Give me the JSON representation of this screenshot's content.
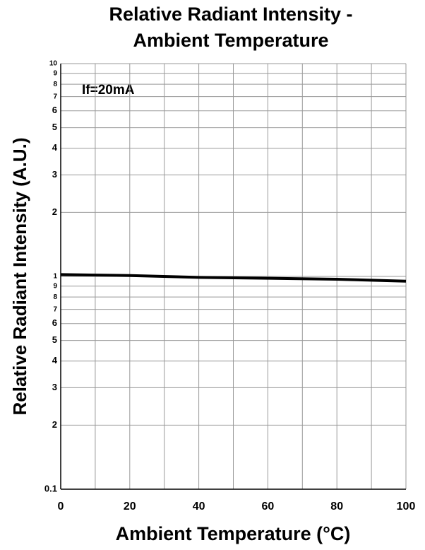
{
  "chart_data": {
    "type": "line",
    "title": [
      "Relative Radiant Intensity -",
      "Ambient Temperature"
    ],
    "x_label": "Ambient Temperature (°C)",
    "y_label": "Relative Radiant Intensity (A.U.)",
    "annotation": "If=20mA",
    "x": [
      0,
      20,
      40,
      60,
      80,
      100
    ],
    "values": [
      1.02,
      1.01,
      0.99,
      0.98,
      0.97,
      0.95
    ],
    "color": "#000000",
    "xlim": [
      0,
      100
    ],
    "xticks": [
      0,
      20,
      40,
      60,
      80,
      100
    ],
    "x_minor_ticks": [
      10,
      30,
      50,
      70,
      90
    ],
    "ylim": [
      0.1,
      10
    ],
    "y_log": true,
    "yticks": [
      0.1,
      {
        "value": 0.2,
        "label": "2"
      },
      {
        "value": 0.3,
        "label": "3"
      },
      {
        "value": 0.4,
        "label": "4"
      },
      {
        "value": 0.5,
        "label": "5"
      },
      {
        "value": 0.6,
        "label": "6"
      },
      {
        "value": 0.7,
        "label": "7"
      },
      {
        "value": 0.8,
        "label": "8"
      },
      {
        "value": 0.9,
        "label": "9"
      },
      1,
      2,
      3,
      4,
      5,
      6,
      7,
      8,
      9,
      10
    ],
    "grid": true
  }
}
